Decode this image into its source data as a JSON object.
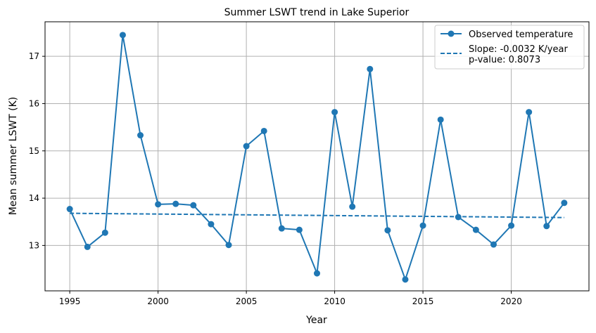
{
  "chart_data": {
    "type": "line",
    "title": "Summer LSWT trend in Lake Superior",
    "xlabel": "Year",
    "ylabel": "Mean summer LSWT (K)",
    "xlim": [
      1993.6,
      2024.4
    ],
    "ylim": [
      12.04,
      17.73
    ],
    "xticks": [
      1995,
      2000,
      2005,
      2010,
      2015,
      2020
    ],
    "yticks": [
      13,
      14,
      15,
      16,
      17
    ],
    "grid": true,
    "legend_position": "top-right",
    "colors": {
      "series": "#1f77b4",
      "grid": "#b0b0b0",
      "axes": "#000000"
    },
    "series": [
      {
        "name": "Observed temperature",
        "style": "solid-line-with-markers",
        "x": [
          1995,
          1996,
          1997,
          1998,
          1999,
          2000,
          2001,
          2002,
          2003,
          2004,
          2005,
          2006,
          2007,
          2008,
          2009,
          2010,
          2011,
          2012,
          2013,
          2014,
          2015,
          2016,
          2017,
          2018,
          2019,
          2020,
          2021,
          2022,
          2023
        ],
        "y": [
          13.77,
          12.97,
          13.27,
          17.45,
          15.33,
          13.87,
          13.88,
          13.85,
          13.45,
          13.01,
          15.1,
          15.42,
          13.36,
          13.33,
          12.41,
          15.82,
          13.82,
          16.73,
          13.32,
          12.28,
          13.42,
          15.66,
          13.6,
          13.33,
          13.02,
          13.42,
          15.82,
          13.41,
          13.9
        ]
      },
      {
        "name": "Slope: -0.0032 K/year\np-value: 0.8073",
        "style": "dashed-line",
        "x": [
          1995,
          2023
        ],
        "y": [
          13.68,
          13.59
        ]
      }
    ]
  }
}
